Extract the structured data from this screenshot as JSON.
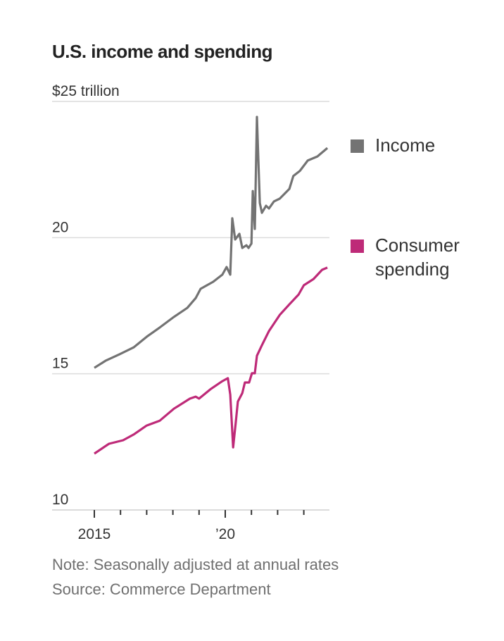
{
  "chart_data": {
    "type": "line",
    "title": "U.S. income and spending",
    "ylabel": "$25 trillion",
    "ylim": [
      10,
      25
    ],
    "xlim": [
      2014.6,
      2023.95
    ],
    "y_ticks": [
      {
        "v": 25,
        "label": "$25 trillion"
      },
      {
        "v": 20,
        "label": "20"
      },
      {
        "v": 15,
        "label": "15"
      },
      {
        "v": 10,
        "label": "10"
      }
    ],
    "x_ticks": [
      2015,
      2016,
      2017,
      2018,
      2019,
      2020,
      2021,
      2022,
      2023
    ],
    "x_tick_labels": [
      {
        "v": 2015,
        "label": "2015"
      },
      {
        "v": 2020,
        "label": "’20"
      }
    ],
    "grid": true,
    "legend_placement": "right",
    "series": [
      {
        "name": "Income",
        "color": "#737373",
        "points": [
          [
            2015.0,
            15.22
          ],
          [
            2015.43,
            15.48
          ],
          [
            2015.97,
            15.72
          ],
          [
            2016.5,
            15.97
          ],
          [
            2017.0,
            16.36
          ],
          [
            2017.5,
            16.7
          ],
          [
            2018.04,
            17.09
          ],
          [
            2018.55,
            17.42
          ],
          [
            2018.87,
            17.78
          ],
          [
            2019.06,
            18.12
          ],
          [
            2019.54,
            18.38
          ],
          [
            2019.89,
            18.64
          ],
          [
            2020.05,
            18.92
          ],
          [
            2020.19,
            18.64
          ],
          [
            2020.27,
            20.71
          ],
          [
            2020.38,
            19.93
          ],
          [
            2020.54,
            20.14
          ],
          [
            2020.65,
            19.62
          ],
          [
            2020.81,
            19.72
          ],
          [
            2020.89,
            19.62
          ],
          [
            2021.0,
            19.78
          ],
          [
            2021.05,
            21.71
          ],
          [
            2021.13,
            20.32
          ],
          [
            2021.21,
            24.43
          ],
          [
            2021.32,
            21.27
          ],
          [
            2021.4,
            20.91
          ],
          [
            2021.56,
            21.17
          ],
          [
            2021.67,
            21.07
          ],
          [
            2021.86,
            21.33
          ],
          [
            2022.08,
            21.43
          ],
          [
            2022.45,
            21.79
          ],
          [
            2022.6,
            22.26
          ],
          [
            2022.85,
            22.45
          ],
          [
            2023.15,
            22.83
          ],
          [
            2023.52,
            22.98
          ],
          [
            2023.9,
            23.29
          ]
        ]
      },
      {
        "name": "Consumer spending",
        "color": "#be2a78",
        "points": [
          [
            2015.0,
            12.07
          ],
          [
            2015.56,
            12.43
          ],
          [
            2016.1,
            12.56
          ],
          [
            2016.5,
            12.77
          ],
          [
            2017.0,
            13.1
          ],
          [
            2017.5,
            13.28
          ],
          [
            2018.04,
            13.72
          ],
          [
            2018.65,
            14.09
          ],
          [
            2018.87,
            14.16
          ],
          [
            2019.0,
            14.09
          ],
          [
            2019.46,
            14.45
          ],
          [
            2019.89,
            14.73
          ],
          [
            2020.1,
            14.84
          ],
          [
            2020.19,
            14.24
          ],
          [
            2020.3,
            12.3
          ],
          [
            2020.4,
            13.21
          ],
          [
            2020.48,
            13.98
          ],
          [
            2020.65,
            14.29
          ],
          [
            2020.75,
            14.68
          ],
          [
            2020.91,
            14.68
          ],
          [
            2021.02,
            15.02
          ],
          [
            2021.13,
            15.02
          ],
          [
            2021.21,
            15.66
          ],
          [
            2021.4,
            16.05
          ],
          [
            2021.67,
            16.57
          ],
          [
            2022.08,
            17.16
          ],
          [
            2022.45,
            17.55
          ],
          [
            2022.8,
            17.91
          ],
          [
            2023.0,
            18.25
          ],
          [
            2023.37,
            18.48
          ],
          [
            2023.7,
            18.82
          ],
          [
            2023.9,
            18.9
          ]
        ]
      }
    ]
  },
  "legend": [
    {
      "label_lines": [
        "Income"
      ]
    },
    {
      "label_lines": [
        "Consumer",
        "spending"
      ]
    }
  ],
  "notes": {
    "note": "Note: Seasonally adjusted at annual rates",
    "source": "Source: Commerce Department"
  }
}
